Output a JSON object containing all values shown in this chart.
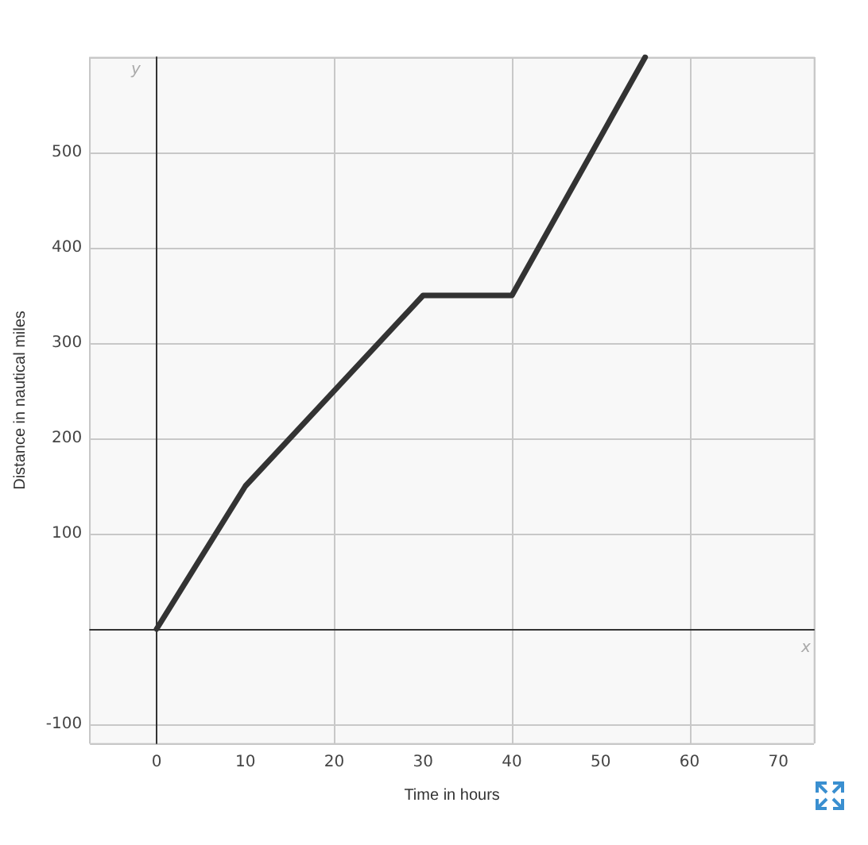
{
  "chart_data": {
    "type": "line",
    "xlabel": "Time in hours",
    "ylabel": "Distance in nautical miles",
    "x": [
      0,
      10,
      30,
      40,
      55
    ],
    "series": [
      {
        "color": "#333333",
        "values": [
          0,
          150,
          350,
          350,
          600
        ]
      }
    ],
    "xlim": [
      -7.5,
      74
    ],
    "ylim": [
      -120,
      600
    ],
    "xticks": [
      0,
      10,
      20,
      30,
      40,
      50,
      60,
      70
    ],
    "yticks": [
      -100,
      100,
      200,
      300,
      400,
      500
    ],
    "annotations": [
      "x",
      "y"
    ],
    "grid": true,
    "marker": "none",
    "line_style": "solid"
  }
}
